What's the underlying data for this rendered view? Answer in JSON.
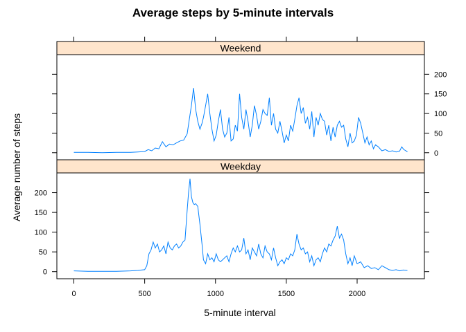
{
  "chart_data": {
    "type": "line",
    "title": "Average steps by 5-minute intervals",
    "xlabel": "5-minute interval",
    "ylabel": "Average number of steps",
    "xlim": [
      -120,
      2475
    ],
    "ylim": [
      -18,
      250
    ],
    "x_ticks": [
      0,
      500,
      1000,
      1500,
      2000
    ],
    "y_ticks": [
      0,
      50,
      100,
      150,
      200
    ],
    "strip_color": "#ffe5cc",
    "line_color": "#0080ff",
    "panels": [
      {
        "name": "Weekend",
        "y_axis_side": "right",
        "x": [
          0,
          100,
          200,
          300,
          400,
          450,
          500,
          525,
          550,
          575,
          600,
          625,
          650,
          675,
          700,
          725,
          750,
          775,
          800,
          815,
          830,
          845,
          860,
          875,
          890,
          905,
          915,
          930,
          945,
          960,
          975,
          990,
          1005,
          1020,
          1035,
          1050,
          1065,
          1080,
          1095,
          1110,
          1125,
          1140,
          1155,
          1170,
          1185,
          1200,
          1215,
          1230,
          1245,
          1260,
          1275,
          1290,
          1305,
          1320,
          1335,
          1350,
          1365,
          1380,
          1395,
          1410,
          1425,
          1440,
          1455,
          1470,
          1485,
          1500,
          1515,
          1530,
          1545,
          1560,
          1575,
          1590,
          1605,
          1620,
          1635,
          1650,
          1665,
          1680,
          1695,
          1710,
          1725,
          1740,
          1755,
          1770,
          1785,
          1800,
          1815,
          1830,
          1845,
          1860,
          1875,
          1890,
          1905,
          1920,
          1935,
          1950,
          1965,
          1980,
          1995,
          2010,
          2025,
          2040,
          2055,
          2070,
          2085,
          2100,
          2115,
          2130,
          2150,
          2175,
          2200,
          2225,
          2250,
          2275,
          2300,
          2315,
          2330,
          2345,
          2355
        ],
        "y": [
          1,
          1,
          0,
          1,
          1,
          2,
          3,
          8,
          5,
          12,
          10,
          28,
          15,
          22,
          20,
          25,
          30,
          32,
          48,
          85,
          120,
          165,
          110,
          80,
          60,
          75,
          90,
          120,
          150,
          100,
          60,
          30,
          45,
          80,
          110,
          60,
          40,
          50,
          90,
          30,
          35,
          70,
          55,
          150,
          90,
          60,
          110,
          80,
          40,
          70,
          120,
          95,
          60,
          80,
          110,
          100,
          95,
          140,
          70,
          100,
          60,
          50,
          80,
          55,
          25,
          45,
          30,
          70,
          55,
          85,
          120,
          140,
          100,
          115,
          75,
          90,
          60,
          105,
          40,
          90,
          70,
          100,
          85,
          80,
          45,
          70,
          30,
          65,
          40,
          70,
          80,
          65,
          70,
          35,
          15,
          50,
          25,
          30,
          45,
          90,
          75,
          50,
          25,
          40,
          20,
          30,
          10,
          20,
          15,
          5,
          8,
          3,
          5,
          2,
          4,
          15,
          8,
          5,
          2
        ]
      },
      {
        "name": "Weekday",
        "y_axis_side": "left",
        "x": [
          0,
          100,
          200,
          300,
          400,
          450,
          500,
          515,
          530,
          545,
          560,
          575,
          590,
          605,
          620,
          635,
          650,
          665,
          680,
          695,
          710,
          725,
          740,
          755,
          770,
          785,
          800,
          810,
          820,
          830,
          840,
          850,
          860,
          875,
          890,
          905,
          915,
          930,
          945,
          960,
          975,
          990,
          1005,
          1020,
          1035,
          1050,
          1065,
          1080,
          1095,
          1110,
          1125,
          1140,
          1155,
          1170,
          1185,
          1200,
          1215,
          1230,
          1245,
          1260,
          1275,
          1290,
          1305,
          1320,
          1335,
          1350,
          1365,
          1380,
          1395,
          1410,
          1425,
          1440,
          1455,
          1470,
          1485,
          1500,
          1515,
          1530,
          1545,
          1560,
          1575,
          1590,
          1605,
          1620,
          1635,
          1650,
          1665,
          1680,
          1695,
          1710,
          1725,
          1740,
          1755,
          1770,
          1785,
          1800,
          1815,
          1830,
          1845,
          1860,
          1875,
          1890,
          1905,
          1920,
          1935,
          1950,
          1965,
          1980,
          2000,
          2025,
          2050,
          2075,
          2100,
          2125,
          2150,
          2175,
          2200,
          2225,
          2250,
          2275,
          2300,
          2325,
          2355
        ],
        "y": [
          2,
          1,
          1,
          1,
          2,
          3,
          5,
          15,
          45,
          55,
          75,
          60,
          70,
          50,
          55,
          65,
          45,
          75,
          60,
          55,
          65,
          70,
          60,
          65,
          75,
          80,
          155,
          200,
          235,
          190,
          175,
          170,
          172,
          165,
          120,
          70,
          30,
          20,
          45,
          30,
          35,
          25,
          45,
          30,
          25,
          30,
          35,
          40,
          25,
          45,
          60,
          50,
          65,
          50,
          55,
          85,
          45,
          55,
          30,
          60,
          50,
          40,
          70,
          45,
          35,
          65,
          50,
          45,
          30,
          60,
          35,
          15,
          25,
          30,
          20,
          35,
          30,
          45,
          40,
          55,
          95,
          70,
          55,
          60,
          45,
          50,
          25,
          40,
          15,
          30,
          35,
          25,
          45,
          60,
          50,
          70,
          65,
          80,
          90,
          115,
          85,
          95,
          80,
          45,
          20,
          35,
          15,
          40,
          20,
          25,
          10,
          15,
          8,
          10,
          5,
          15,
          10,
          5,
          3,
          5,
          2,
          4,
          3
        ]
      }
    ]
  }
}
